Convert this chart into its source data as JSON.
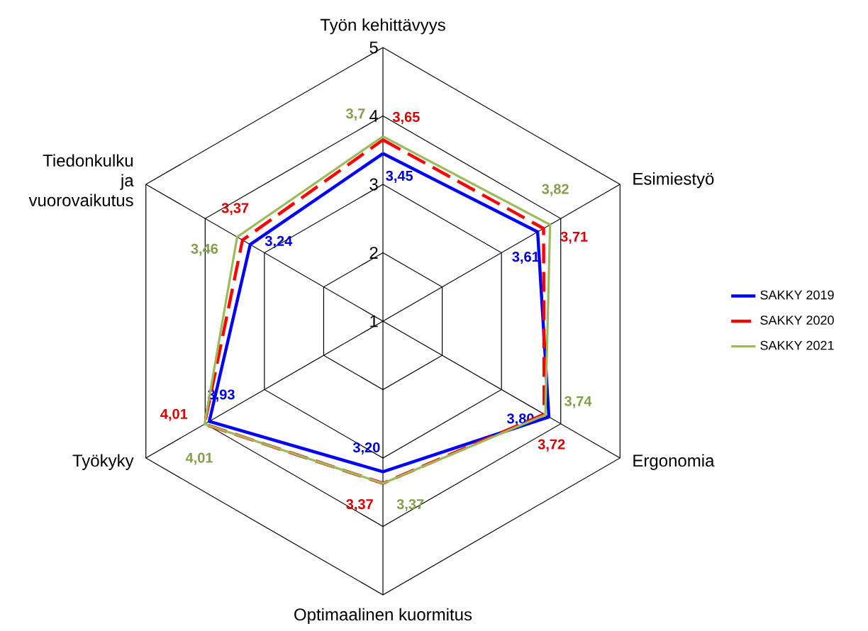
{
  "chart_data": {
    "type": "radar",
    "categories": [
      "Työn kehittävyys",
      "Esimiestyö",
      "Ergonomia",
      "Optimaalinen kuormitus",
      "Työkyky",
      "Tiedonkulku ja vuorovaikutus"
    ],
    "ylim": [
      1,
      5
    ],
    "yticks": [
      1,
      2,
      3,
      4,
      5
    ],
    "grid": true,
    "legend": "right",
    "series": [
      {
        "name": "SAKKY 2019",
        "color": "#0000ff",
        "values": [
          3.45,
          3.61,
          3.8,
          3.2,
          3.93,
          3.24
        ],
        "value_labels": [
          "3,45",
          "3,61",
          "3,80",
          "3,20",
          "3,93",
          "3,24"
        ]
      },
      {
        "name": "SAKKY 2020",
        "color": "#ff0000",
        "line_style": "dashed",
        "values": [
          3.65,
          3.71,
          3.72,
          3.37,
          4.01,
          3.37
        ],
        "value_labels": [
          "3,65",
          "3,71",
          "3,72",
          "3,37",
          "4,01",
          "3,37"
        ]
      },
      {
        "name": "SAKKY 2021",
        "color": "#9bbb59",
        "values": [
          3.7,
          3.82,
          3.74,
          3.37,
          4.01,
          3.46
        ],
        "value_labels": [
          "3,7",
          "3,82",
          "3,74",
          "3,37",
          "4,01",
          "3,46"
        ]
      }
    ]
  }
}
